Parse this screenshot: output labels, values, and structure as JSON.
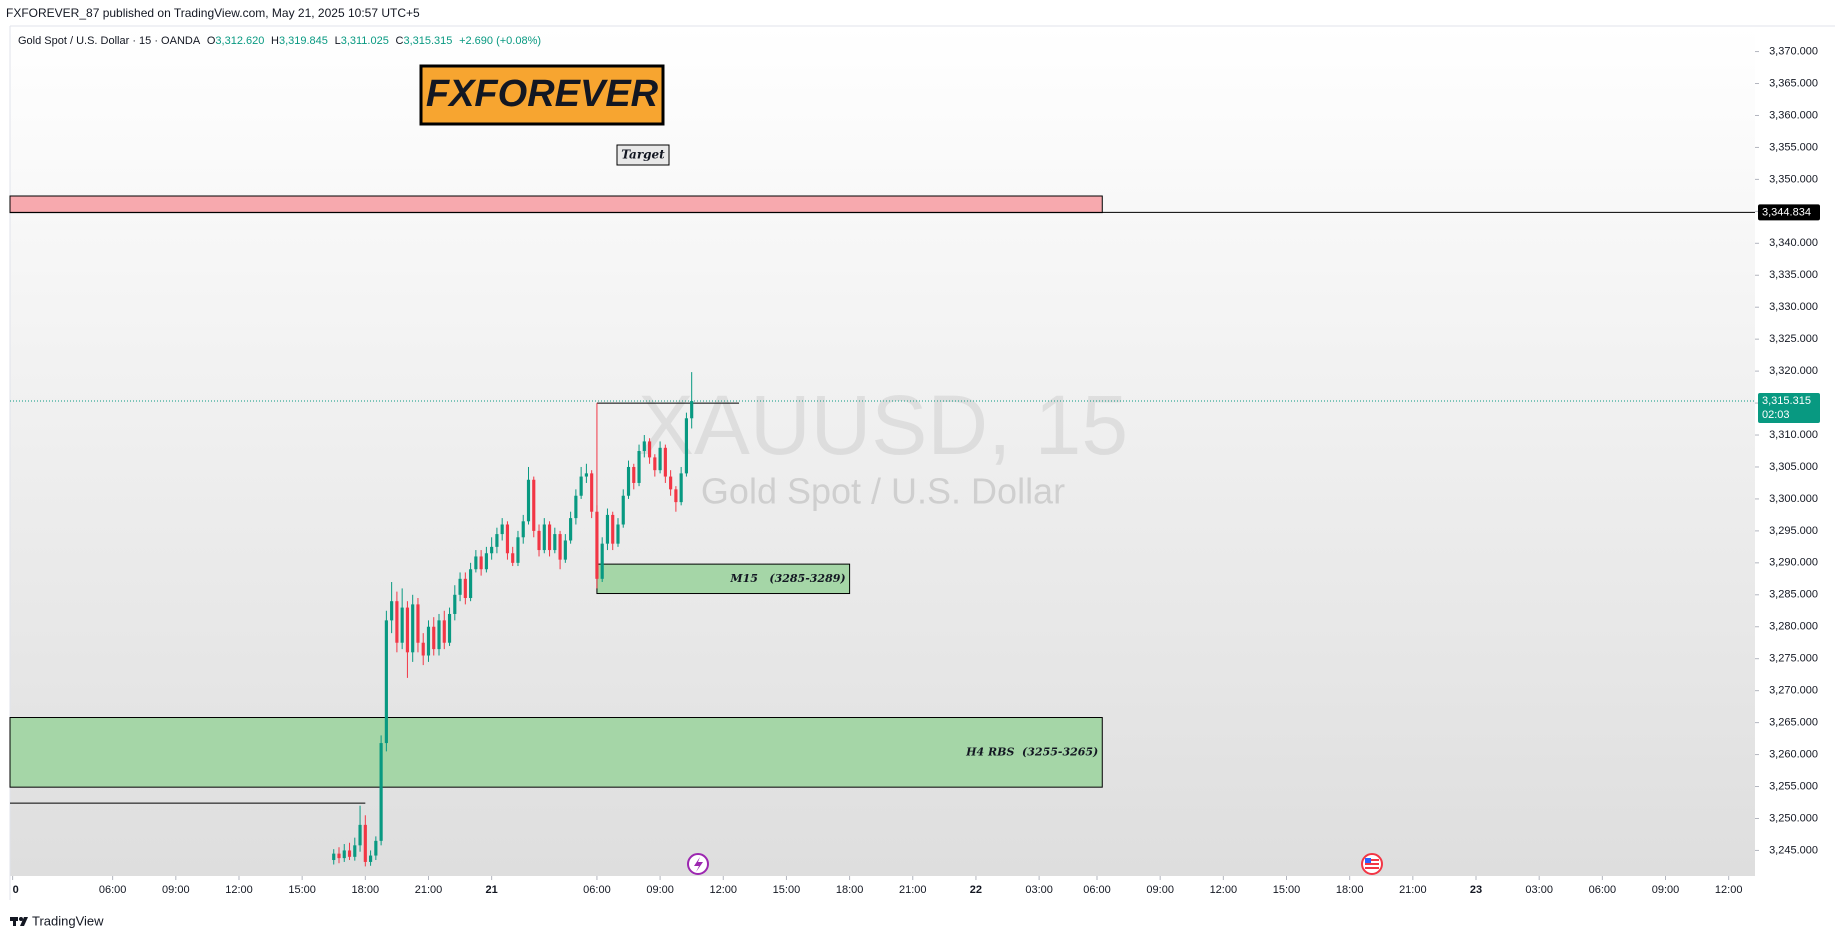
{
  "header": {
    "publisher": "FXFOREVER_87 published on TradingView.com, May 21, 2025 10:57 UTC+5"
  },
  "footer": {
    "brand": "TradingView"
  },
  "chart_data": {
    "type": "candlestick",
    "symbol_legend": {
      "name": "Gold Spot / U.S. Dollar · 15 · OANDA",
      "o_key": "O",
      "o": "3,312.620",
      "h_key": "H",
      "h": "3,319.845",
      "l_key": "L",
      "l": "3,311.025",
      "c_key": "C",
      "c": "3,315.315",
      "change": "+2.690 (+0.08%)"
    },
    "watermark": {
      "title": "XAUUSD, 15",
      "subtitle": "Gold Spot / U.S. Dollar"
    },
    "annotations": {
      "logo": "FXFOREVER",
      "target": "Target"
    },
    "up_color": "#089981",
    "down_color": "#f23645",
    "xlim": [
      -0.5,
      331
    ],
    "xticks": [
      {
        "value": 0,
        "label": "0"
      },
      {
        "value": 19,
        "label": "06:00"
      },
      {
        "value": 31,
        "label": "09:00"
      },
      {
        "value": 43,
        "label": "12:00"
      },
      {
        "value": 55,
        "label": "15:00"
      },
      {
        "value": 67,
        "label": "18:00"
      },
      {
        "value": 79,
        "label": "21:00"
      },
      {
        "value": 91,
        "label": "21"
      },
      {
        "value": 111,
        "label": "06:00"
      },
      {
        "value": 123,
        "label": "09:00"
      },
      {
        "value": 135,
        "label": "12:00"
      },
      {
        "value": 147,
        "label": "15:00"
      },
      {
        "value": 159,
        "label": "18:00"
      },
      {
        "value": 171,
        "label": "21:00"
      },
      {
        "value": 183,
        "label": "22"
      },
      {
        "value": 195,
        "label": "03:00"
      },
      {
        "value": 206,
        "label": "06:00"
      },
      {
        "value": 218,
        "label": "09:00"
      },
      {
        "value": 230,
        "label": "12:00"
      },
      {
        "value": 242,
        "label": "15:00"
      },
      {
        "value": 254,
        "label": "18:00"
      },
      {
        "value": 266,
        "label": "21:00"
      },
      {
        "value": 278,
        "label": "23"
      },
      {
        "value": 290,
        "label": "03:00"
      },
      {
        "value": 302,
        "label": "06:00"
      },
      {
        "value": 314,
        "label": "09:00"
      },
      {
        "value": 326,
        "label": "12:00"
      }
    ],
    "ylim": [
      3241,
      3374
    ],
    "yticks": [
      {
        "value": 3245,
        "label": "3,245.000"
      },
      {
        "value": 3250,
        "label": "3,250.000"
      },
      {
        "value": 3255,
        "label": "3,255.000"
      },
      {
        "value": 3260,
        "label": "3,260.000"
      },
      {
        "value": 3265,
        "label": "3,265.000"
      },
      {
        "value": 3270,
        "label": "3,270.000"
      },
      {
        "value": 3275,
        "label": "3,275.000"
      },
      {
        "value": 3280,
        "label": "3,280.000"
      },
      {
        "value": 3285,
        "label": "3,285.000"
      },
      {
        "value": 3290,
        "label": "3,290.000"
      },
      {
        "value": 3295,
        "label": "3,295.000"
      },
      {
        "value": 3300,
        "label": "3,300.000"
      },
      {
        "value": 3305,
        "label": "3,305.000"
      },
      {
        "value": 3310,
        "label": "3,310.000"
      },
      {
        "value": 3315,
        "label": "3,315.000"
      },
      {
        "value": 3320,
        "label": "3,320.000"
      },
      {
        "value": 3325,
        "label": "3,325.000"
      },
      {
        "value": 3330,
        "label": "3,330.000"
      },
      {
        "value": 3335,
        "label": "3,335.000"
      },
      {
        "value": 3340,
        "label": "3,340.000"
      },
      {
        "value": 3345,
        "label": "3,345.000"
      },
      {
        "value": 3350,
        "label": "3,350.000"
      },
      {
        "value": 3355,
        "label": "3,355.000"
      },
      {
        "value": 3360,
        "label": "3,360.000"
      },
      {
        "value": 3365,
        "label": "3,365.000"
      },
      {
        "value": 3370,
        "label": "3,370.000"
      }
    ],
    "zones": [
      {
        "low": 3344.8,
        "high": 3347.4,
        "x_end": 207,
        "color": "#f7a9ae"
      },
      {
        "low": 3254.9,
        "high": 3265.8,
        "x_end": 207,
        "color": "#a5d6a7",
        "label": "H4 RBS  (3255-3265)"
      },
      {
        "low": 3285.2,
        "high": 3289.8,
        "x_start": 111,
        "x_end": 159,
        "color": "#a5d6a7",
        "label": "M15   (3285-3289)"
      }
    ],
    "levels": [
      {
        "value": 3252.4,
        "x_end": 67
      },
      {
        "value": 3315,
        "x_start": 111,
        "x_end": 138
      }
    ],
    "markers": [
      {
        "x": 111,
        "from": 3289.8,
        "to": 3315,
        "color": "#f23645"
      }
    ],
    "price_lines": [
      {
        "value": 3344.834,
        "label": "3,344.834",
        "color": "#000000",
        "style": "solid"
      },
      {
        "value": 3315.315,
        "label": "3,315.315",
        "countdown": "02:03",
        "color": "#089981",
        "style": "dotted"
      }
    ],
    "candles": {
      "x": [
        61,
        62,
        63,
        64,
        65,
        66,
        67,
        68,
        69,
        70,
        71,
        72,
        73,
        74,
        75,
        76,
        77,
        78,
        79,
        80,
        81,
        82,
        83,
        84,
        85,
        86,
        87,
        88,
        89,
        90,
        91,
        92,
        93,
        94,
        95,
        96,
        97,
        98,
        99,
        100,
        101,
        102,
        103,
        104,
        105,
        106,
        107,
        108,
        109,
        110,
        111,
        112,
        113,
        114,
        115,
        116,
        117,
        118,
        119,
        120,
        121,
        122,
        123,
        124,
        125,
        126,
        127,
        128,
        129
      ],
      "open": [
        3243.5,
        3244.5,
        3243.8,
        3245,
        3244,
        3245.8,
        3249,
        3243.2,
        3244.2,
        3246.5,
        3261.8,
        3281,
        3284,
        3277.5,
        3283,
        3276,
        3283.5,
        3277.5,
        3275.5,
        3280,
        3276.5,
        3281,
        3277.5,
        3282,
        3285,
        3287.5,
        3284.5,
        3289,
        3291,
        3289,
        3291.5,
        3292.5,
        3294.5,
        3296,
        3291.5,
        3290,
        3294,
        3296.5,
        3303,
        3295,
        3292,
        3296,
        3292,
        3294.5,
        3290.5,
        3293.5,
        3297,
        3300.5,
        3303.5,
        3304,
        3298,
        3287.5,
        3293,
        3297.5,
        3293,
        3296,
        3300.5,
        3305,
        3302.5,
        3307.5,
        3309,
        3306.5,
        3304.5,
        3308,
        3303.5,
        3301.5,
        3299.5,
        3304,
        3312.62
      ],
      "high": [
        3245.2,
        3245.5,
        3246,
        3246.2,
        3247,
        3252,
        3250.5,
        3245,
        3247.2,
        3263,
        3282.5,
        3287,
        3285.5,
        3286,
        3284,
        3285,
        3284.5,
        3279,
        3281,
        3281.5,
        3282,
        3282.5,
        3283,
        3286.5,
        3288.5,
        3288.5,
        3290,
        3292,
        3292,
        3292.5,
        3294,
        3295.5,
        3297,
        3296.5,
        3292.5,
        3295,
        3297.5,
        3305,
        3303.5,
        3296,
        3297,
        3296.5,
        3295.5,
        3295,
        3294.5,
        3298,
        3301.5,
        3305,
        3305.5,
        3304.5,
        3299,
        3294,
        3298.5,
        3298,
        3297,
        3301.5,
        3306,
        3305.5,
        3308.5,
        3310,
        3309.5,
        3307,
        3309,
        3308.5,
        3304.5,
        3302,
        3305,
        3313.5,
        3319.845
      ],
      "low": [
        3242.8,
        3243,
        3243.2,
        3243.5,
        3243.4,
        3244.8,
        3242.5,
        3242.6,
        3243.5,
        3245.8,
        3260.5,
        3279,
        3276,
        3276.5,
        3272,
        3274.5,
        3276,
        3274,
        3274.5,
        3275.5,
        3275.5,
        3276.5,
        3277,
        3281,
        3284,
        3283.5,
        3284,
        3288.5,
        3288,
        3288.5,
        3290.5,
        3291.5,
        3293.5,
        3290.5,
        3289.5,
        3289.5,
        3293,
        3296,
        3294,
        3291,
        3291.5,
        3291,
        3291.5,
        3289,
        3290,
        3293,
        3296,
        3300,
        3302.5,
        3297,
        3286,
        3287,
        3292,
        3292,
        3292.5,
        3295.5,
        3300,
        3301.5,
        3302,
        3306.5,
        3305.5,
        3303.5,
        3304,
        3302.5,
        3300.5,
        3298,
        3299,
        3303.5,
        3311.025
      ],
      "close": [
        3244.5,
        3243.8,
        3245,
        3244,
        3245.8,
        3249,
        3243.2,
        3244.2,
        3246.5,
        3261.8,
        3281,
        3284,
        3277.5,
        3283,
        3276,
        3283.5,
        3277.5,
        3275.5,
        3280,
        3276.5,
        3281,
        3277.5,
        3282,
        3285,
        3287.5,
        3284.5,
        3289,
        3291,
        3289,
        3291.5,
        3292.5,
        3294.5,
        3296,
        3291.5,
        3290,
        3294,
        3296.5,
        3303,
        3295,
        3292,
        3296,
        3292,
        3294.5,
        3290.5,
        3293.5,
        3297,
        3300.5,
        3303.5,
        3304,
        3298,
        3287.5,
        3293,
        3297.5,
        3293,
        3296,
        3300.5,
        3305,
        3302.5,
        3307.5,
        3309,
        3306.5,
        3304.5,
        3308,
        3303.5,
        3301.5,
        3299.5,
        3304,
        3312.62,
        3315.315
      ]
    }
  }
}
